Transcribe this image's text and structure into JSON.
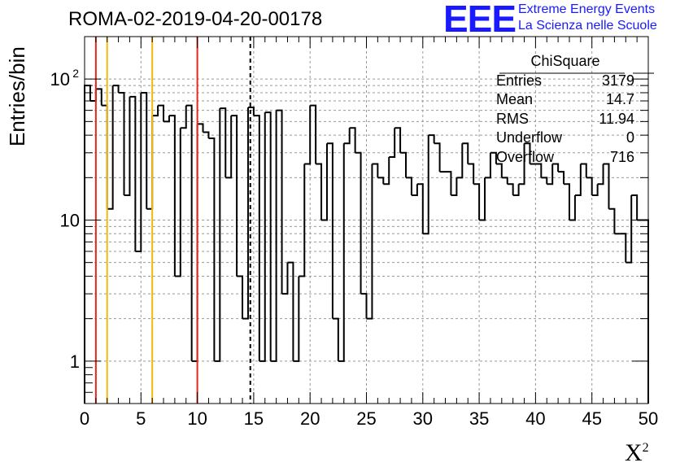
{
  "title": "ROMA-02-2019-04-20-00178",
  "logo": {
    "mark": "EEE",
    "line1": "Extreme Energy Events",
    "line2": "La Scienza nelle Scuole",
    "color": "#1a1aff"
  },
  "stats": {
    "title": "ChiSquare",
    "rows": [
      {
        "label": "Entries",
        "value": "3179"
      },
      {
        "label": "Mean",
        "value": "14.7"
      },
      {
        "label": "RMS",
        "value": "11.94"
      },
      {
        "label": "Underflow",
        "value": "0"
      },
      {
        "label": "Overflow",
        "value": "716"
      }
    ]
  },
  "chart_data": {
    "type": "histogram",
    "scale_y": "log",
    "xlabel_base": "X",
    "xlabel_sup": "2",
    "ylabel": "Entries/bin",
    "xlim": [
      0,
      50
    ],
    "ylim": [
      0.5,
      200
    ],
    "bin_width": 0.5,
    "x_ticks": [
      "0",
      "5",
      "10",
      "15",
      "20",
      "25",
      "30",
      "35",
      "40",
      "45",
      "50"
    ],
    "y_ticks": [
      {
        "value": 1,
        "label": "1"
      },
      {
        "value": 10,
        "label": "10"
      },
      {
        "value": 100,
        "label": "10",
        "sup": "2"
      }
    ],
    "grid": true,
    "values": [
      90,
      70,
      85,
      65,
      12,
      90,
      80,
      15,
      75,
      6,
      80,
      12,
      55,
      65,
      50,
      55,
      4,
      45,
      65,
      1,
      48,
      42,
      38,
      1,
      62,
      20,
      55,
      4,
      2,
      63,
      55,
      1,
      58,
      1,
      60,
      3,
      5,
      1,
      4,
      25,
      65,
      25,
      10,
      35,
      2,
      1,
      35,
      45,
      30,
      3,
      2,
      25,
      20,
      18,
      28,
      45,
      30,
      20,
      15,
      18,
      8,
      40,
      35,
      22,
      22,
      15,
      20,
      35,
      25,
      18,
      10,
      20,
      30,
      25,
      20,
      18,
      15,
      18,
      35,
      25,
      25,
      20,
      18,
      25,
      22,
      18,
      10,
      15,
      25,
      20,
      15,
      18,
      25,
      12,
      8,
      8,
      5,
      15,
      10,
      10
    ],
    "reference_lines": [
      {
        "x": 1,
        "color": "#e8251b",
        "style": "solid"
      },
      {
        "x": 2,
        "color": "#f2b90e",
        "style": "solid"
      },
      {
        "x": 6,
        "color": "#f2b90e",
        "style": "solid"
      },
      {
        "x": 10,
        "color": "#e8251b",
        "style": "solid"
      },
      {
        "x": 14.7,
        "color": "#000000",
        "style": "dashed"
      }
    ]
  }
}
